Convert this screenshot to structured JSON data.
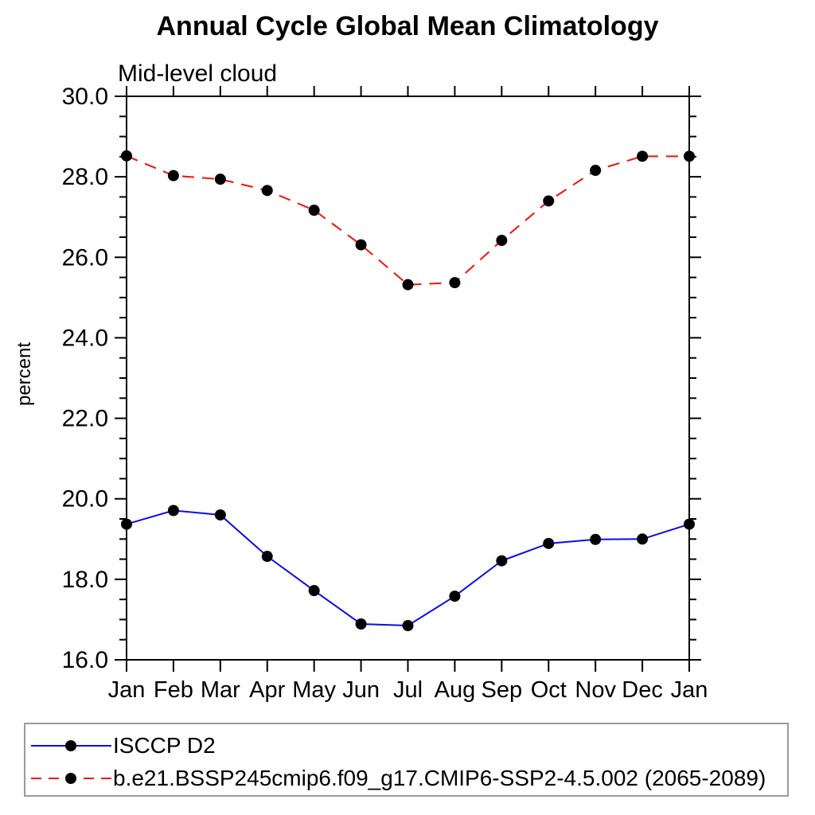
{
  "title": "Annual Cycle Global Mean Climatology",
  "subtitle": "Mid-level cloud",
  "chart_data": {
    "type": "line",
    "title": "Annual Cycle Global Mean Climatology",
    "subtitle": "Mid-level cloud",
    "xlabel": "",
    "ylabel": "percent",
    "x_categories": [
      "Jan",
      "Feb",
      "Mar",
      "Apr",
      "May",
      "Jun",
      "Jul",
      "Aug",
      "Sep",
      "Oct",
      "Nov",
      "Dec",
      "Jan"
    ],
    "ylim": [
      16.0,
      30.0
    ],
    "ytick_major_interval": 2.0,
    "ytick_minor_interval": 0.5,
    "ytick_labels": [
      "16.0",
      "18.0",
      "20.0",
      "22.0",
      "24.0",
      "26.0",
      "28.0",
      "30.0"
    ],
    "grid": false,
    "legend_position": "bottom-left-box",
    "series": [
      {
        "name": "ISCCP D2",
        "line_style": "solid",
        "color": "#0b0bee",
        "marker": "filled-circle",
        "marker_color": "#000000",
        "values": [
          19.37,
          19.71,
          19.6,
          18.57,
          17.72,
          16.89,
          16.85,
          17.58,
          18.46,
          18.89,
          18.99,
          19.0,
          19.37
        ]
      },
      {
        "name": "b.e21.BSSP245cmip6.f09_g17.CMIP6-SSP2-4.5.002 (2065-2089)",
        "line_style": "dashed",
        "color": "#fb0e0c",
        "marker": "filled-circle",
        "marker_color": "#000000",
        "values": [
          28.52,
          28.03,
          27.94,
          27.66,
          27.17,
          26.31,
          25.32,
          25.37,
          26.42,
          27.4,
          28.16,
          28.51,
          28.51
        ]
      }
    ]
  },
  "colors": {
    "frame": "#000000",
    "legend_border": "#9a9a9a",
    "background": "#ffffff"
  }
}
